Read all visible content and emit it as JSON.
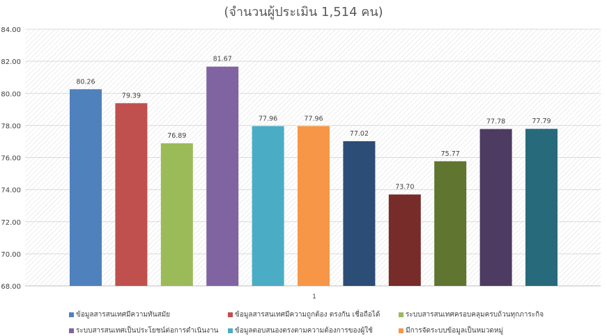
{
  "subtitle": "(จำนวนผู้ประเมิน 1,514 คน)",
  "chart_data": {
    "type": "bar",
    "categories": [
      "1"
    ],
    "ylim": [
      68,
      84
    ],
    "yticks": [
      "68.00",
      "70.00",
      "72.00",
      "74.00",
      "76.00",
      "78.00",
      "80.00",
      "82.00",
      "84.00"
    ],
    "grid": true,
    "legend_position": "bottom",
    "series": [
      {
        "name": "ข้อมูลสารสนเทศมีความทันสมัย",
        "value": 80.26,
        "label": "80.26",
        "color": "#4F81BD"
      },
      {
        "name": "ข้อมูลสารสนเทศมีความถูกต้อง ตรงกัน เชื่อถือได้",
        "value": 79.39,
        "label": "79.39",
        "color": "#C0504D"
      },
      {
        "name": "ระบบสารสนเทศครอบคลุมครบถ้วนทุกภาระกิจ",
        "value": 76.89,
        "label": "76.89",
        "color": "#9BBB59"
      },
      {
        "name": "ระบบสารสนเทศเป็นประโยชน์ต่อการดำเนินงาน",
        "value": 81.67,
        "label": "81.67",
        "color": "#8064A2"
      },
      {
        "name": "ข้อมูลตอบสนองตรงตามความต้องการของผู้ใช้",
        "value": 77.96,
        "label": "77.96",
        "color": "#4BACC6"
      },
      {
        "name": "มีการจัดระบบข้อมูลเป็นหมวดหมู่",
        "value": 77.96,
        "label": "77.96",
        "color": "#F79646"
      },
      {
        "name": "",
        "value": 77.02,
        "label": "77.02",
        "color": "#2C4D75"
      },
      {
        "name": "",
        "value": 73.7,
        "label": "73.70",
        "color": "#772C2A"
      },
      {
        "name": "",
        "value": 75.77,
        "label": "75.77",
        "color": "#5F7530"
      },
      {
        "name": "",
        "value": 77.78,
        "label": "77.78",
        "color": "#4D3B62"
      },
      {
        "name": "",
        "value": 77.79,
        "label": "77.79",
        "color": "#276A7C"
      }
    ]
  }
}
